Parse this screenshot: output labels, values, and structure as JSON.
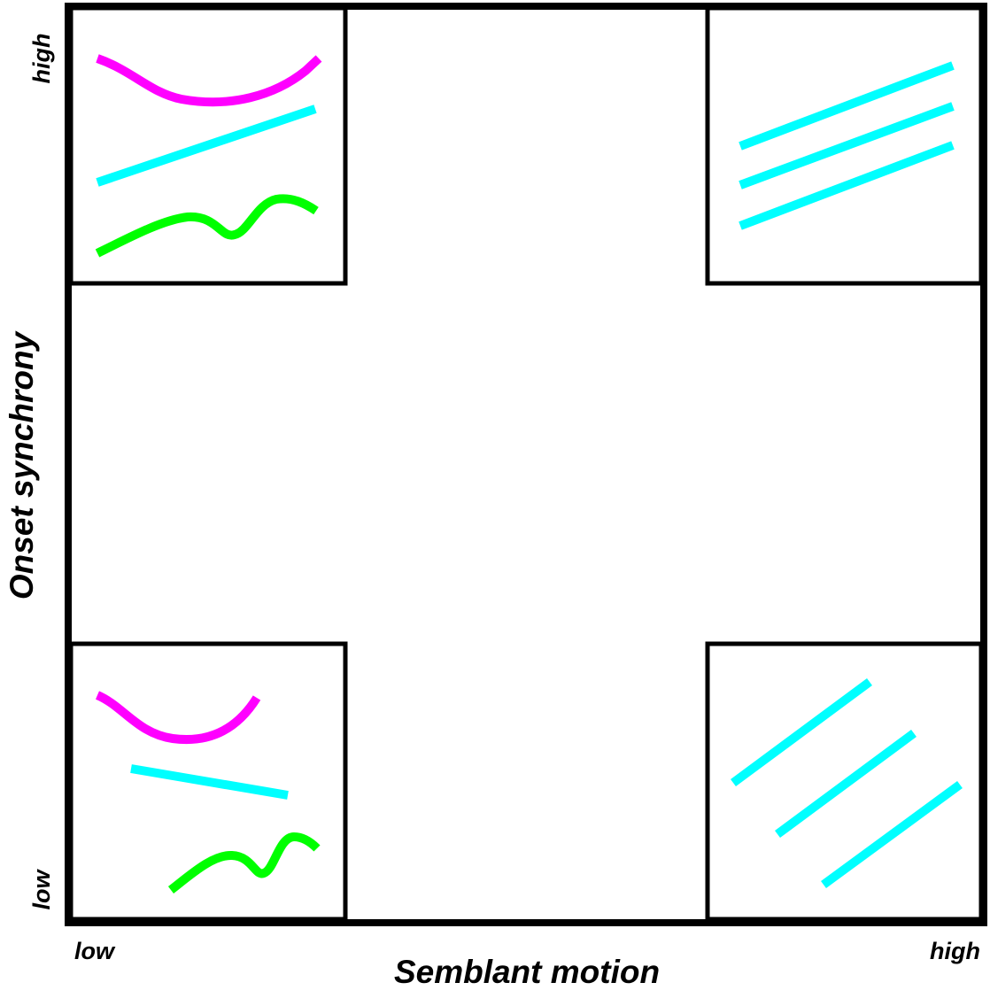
{
  "axes": {
    "x": {
      "label": "Semblant motion",
      "low": "low",
      "high": "high"
    },
    "y": {
      "label": "Onset synchrony",
      "low": "low",
      "high": "high"
    }
  },
  "colors": {
    "frame": "#000000",
    "magenta": "#ff00ff",
    "cyan": "#00ffff",
    "green": "#00ff00"
  },
  "panels": [
    {
      "id": "low-motion-high-synchrony",
      "motion": "low",
      "synchrony": "high",
      "strokes": [
        "magenta curve",
        "cyan line",
        "green wave"
      ]
    },
    {
      "id": "high-motion-high-synchrony",
      "motion": "high",
      "synchrony": "high",
      "strokes": [
        "cyan line",
        "cyan line",
        "cyan line"
      ]
    },
    {
      "id": "low-motion-low-synchrony",
      "motion": "low",
      "synchrony": "low",
      "strokes": [
        "magenta curve",
        "cyan line",
        "green wave"
      ]
    },
    {
      "id": "high-motion-low-synchrony",
      "motion": "high",
      "synchrony": "low",
      "strokes": [
        "cyan line",
        "cyan line",
        "cyan line"
      ]
    }
  ]
}
